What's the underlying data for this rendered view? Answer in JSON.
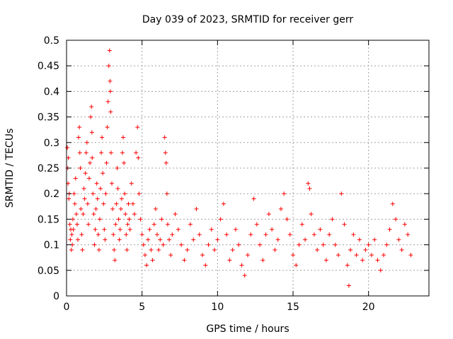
{
  "chart_data": {
    "type": "scatter",
    "title": "Day 039 of 2023, SRMTID for receiver gerr",
    "xlabel": "GPS time / hours",
    "ylabel": "SRMTID / TECUs",
    "xlim": [
      0,
      24
    ],
    "ylim": [
      0,
      0.5
    ],
    "xticks": [
      0,
      5,
      10,
      15,
      20
    ],
    "xtick_labels": [
      "0",
      "5",
      "10",
      "15",
      "20"
    ],
    "yticks": [
      0,
      0.05,
      0.1,
      0.15,
      0.2,
      0.25,
      0.3,
      0.35,
      0.4,
      0.45,
      0.5
    ],
    "ytick_labels": [
      "0",
      "0.05",
      "0.1",
      "0.15",
      "0.2",
      "0.25",
      "0.3",
      "0.35",
      "0.4",
      "0.45",
      "0.5"
    ],
    "grid": true,
    "marker": "+",
    "color": "#ff0000",
    "series": [
      {
        "points": [
          [
            0.05,
            0.29
          ],
          [
            0.08,
            0.25
          ],
          [
            0.1,
            0.22
          ],
          [
            0.12,
            0.27
          ],
          [
            0.15,
            0.19
          ],
          [
            0.18,
            0.2
          ],
          [
            0.22,
            0.14
          ],
          [
            0.25,
            0.11
          ],
          [
            0.28,
            0.13
          ],
          [
            0.32,
            0.09
          ],
          [
            0.35,
            0.12
          ],
          [
            0.38,
            0.1
          ],
          [
            0.42,
            0.15
          ],
          [
            0.45,
            0.13
          ],
          [
            0.5,
            0.2
          ],
          [
            0.55,
            0.18
          ],
          [
            0.6,
            0.23
          ],
          [
            0.65,
            0.16
          ],
          [
            0.7,
            0.14
          ],
          [
            0.75,
            0.11
          ],
          [
            0.8,
            0.31
          ],
          [
            0.85,
            0.33
          ],
          [
            0.88,
            0.28
          ],
          [
            0.92,
            0.25
          ],
          [
            0.95,
            0.17
          ],
          [
            1.0,
            0.12
          ],
          [
            1.05,
            0.09
          ],
          [
            1.1,
            0.16
          ],
          [
            1.15,
            0.21
          ],
          [
            1.2,
            0.19
          ],
          [
            1.25,
            0.24
          ],
          [
            1.3,
            0.28
          ],
          [
            1.35,
            0.3
          ],
          [
            1.4,
            0.18
          ],
          [
            1.45,
            0.14
          ],
          [
            1.5,
            0.23
          ],
          [
            1.55,
            0.26
          ],
          [
            1.6,
            0.35
          ],
          [
            1.65,
            0.37
          ],
          [
            1.68,
            0.32
          ],
          [
            1.7,
            0.27
          ],
          [
            1.75,
            0.2
          ],
          [
            1.8,
            0.16
          ],
          [
            1.85,
            0.1
          ],
          [
            1.9,
            0.13
          ],
          [
            1.95,
            0.17
          ],
          [
            2.0,
            0.22
          ],
          [
            2.05,
            0.19
          ],
          [
            2.1,
            0.12
          ],
          [
            2.15,
            0.09
          ],
          [
            2.2,
            0.15
          ],
          [
            2.25,
            0.21
          ],
          [
            2.3,
            0.28
          ],
          [
            2.35,
            0.31
          ],
          [
            2.4,
            0.24
          ],
          [
            2.45,
            0.18
          ],
          [
            2.5,
            0.13
          ],
          [
            2.55,
            0.11
          ],
          [
            2.6,
            0.2
          ],
          [
            2.65,
            0.26
          ],
          [
            2.7,
            0.33
          ],
          [
            2.75,
            0.38
          ],
          [
            2.8,
            0.45
          ],
          [
            2.85,
            0.48
          ],
          [
            2.88,
            0.42
          ],
          [
            2.9,
            0.4
          ],
          [
            2.92,
            0.36
          ],
          [
            2.95,
            0.28
          ],
          [
            3.0,
            0.22
          ],
          [
            3.05,
            0.17
          ],
          [
            3.1,
            0.12
          ],
          [
            3.15,
            0.09
          ],
          [
            3.2,
            0.07
          ],
          [
            3.25,
            0.14
          ],
          [
            3.3,
            0.18
          ],
          [
            3.35,
            0.25
          ],
          [
            3.4,
            0.21
          ],
          [
            3.45,
            0.15
          ],
          [
            3.5,
            0.11
          ],
          [
            3.55,
            0.13
          ],
          [
            3.6,
            0.17
          ],
          [
            3.65,
            0.19
          ],
          [
            3.7,
            0.28
          ],
          [
            3.75,
            0.31
          ],
          [
            3.8,
            0.26
          ],
          [
            3.85,
            0.2
          ],
          [
            3.9,
            0.16
          ],
          [
            3.95,
            0.12
          ],
          [
            4.0,
            0.09
          ],
          [
            4.05,
            0.14
          ],
          [
            4.1,
            0.18
          ],
          [
            4.15,
            0.15
          ],
          [
            4.2,
            0.13
          ],
          [
            4.3,
            0.22
          ],
          [
            4.4,
            0.18
          ],
          [
            4.5,
            0.16
          ],
          [
            4.6,
            0.28
          ],
          [
            4.7,
            0.33
          ],
          [
            4.75,
            0.27
          ],
          [
            4.8,
            0.2
          ],
          [
            4.9,
            0.15
          ],
          [
            5.0,
            0.12
          ],
          [
            5.1,
            0.1
          ],
          [
            5.2,
            0.08
          ],
          [
            5.3,
            0.06
          ],
          [
            5.4,
            0.11
          ],
          [
            5.5,
            0.13
          ],
          [
            5.6,
            0.09
          ],
          [
            5.7,
            0.07
          ],
          [
            5.8,
            0.14
          ],
          [
            5.9,
            0.17
          ],
          [
            6.0,
            0.12
          ],
          [
            6.1,
            0.09
          ],
          [
            6.2,
            0.11
          ],
          [
            6.3,
            0.15
          ],
          [
            6.4,
            0.1
          ],
          [
            6.5,
            0.31
          ],
          [
            6.55,
            0.28
          ],
          [
            6.6,
            0.26
          ],
          [
            6.65,
            0.2
          ],
          [
            6.7,
            0.14
          ],
          [
            6.8,
            0.11
          ],
          [
            6.9,
            0.08
          ],
          [
            7.0,
            0.12
          ],
          [
            7.2,
            0.16
          ],
          [
            7.4,
            0.13
          ],
          [
            7.6,
            0.1
          ],
          [
            7.8,
            0.07
          ],
          [
            8.0,
            0.09
          ],
          [
            8.2,
            0.14
          ],
          [
            8.4,
            0.11
          ],
          [
            8.6,
            0.17
          ],
          [
            8.8,
            0.12
          ],
          [
            9.0,
            0.08
          ],
          [
            9.2,
            0.06
          ],
          [
            9.4,
            0.1
          ],
          [
            9.6,
            0.13
          ],
          [
            9.8,
            0.09
          ],
          [
            10.0,
            0.11
          ],
          [
            10.2,
            0.15
          ],
          [
            10.4,
            0.18
          ],
          [
            10.6,
            0.12
          ],
          [
            10.8,
            0.07
          ],
          [
            11.0,
            0.09
          ],
          [
            11.2,
            0.13
          ],
          [
            11.4,
            0.1
          ],
          [
            11.6,
            0.06
          ],
          [
            11.8,
            0.04
          ],
          [
            12.0,
            0.08
          ],
          [
            12.2,
            0.12
          ],
          [
            12.4,
            0.19
          ],
          [
            12.6,
            0.14
          ],
          [
            12.8,
            0.1
          ],
          [
            13.0,
            0.07
          ],
          [
            13.2,
            0.12
          ],
          [
            13.4,
            0.16
          ],
          [
            13.6,
            0.13
          ],
          [
            13.8,
            0.09
          ],
          [
            14.0,
            0.11
          ],
          [
            14.2,
            0.17
          ],
          [
            14.4,
            0.2
          ],
          [
            14.6,
            0.15
          ],
          [
            14.8,
            0.12
          ],
          [
            15.0,
            0.08
          ],
          [
            15.2,
            0.06
          ],
          [
            15.4,
            0.1
          ],
          [
            15.6,
            0.14
          ],
          [
            15.8,
            0.11
          ],
          [
            16.0,
            0.22
          ],
          [
            16.1,
            0.21
          ],
          [
            16.2,
            0.16
          ],
          [
            16.4,
            0.12
          ],
          [
            16.6,
            0.09
          ],
          [
            16.8,
            0.13
          ],
          [
            17.0,
            0.1
          ],
          [
            17.2,
            0.07
          ],
          [
            17.4,
            0.12
          ],
          [
            17.6,
            0.15
          ],
          [
            17.8,
            0.1
          ],
          [
            18.0,
            0.08
          ],
          [
            18.2,
            0.2
          ],
          [
            18.4,
            0.14
          ],
          [
            18.6,
            0.06
          ],
          [
            18.7,
            0.02
          ],
          [
            18.8,
            0.09
          ],
          [
            19.0,
            0.12
          ],
          [
            19.2,
            0.08
          ],
          [
            19.4,
            0.11
          ],
          [
            19.6,
            0.07
          ],
          [
            19.8,
            0.09
          ],
          [
            20.0,
            0.1
          ],
          [
            20.2,
            0.08
          ],
          [
            20.4,
            0.11
          ],
          [
            20.6,
            0.07
          ],
          [
            20.8,
            0.05
          ],
          [
            21.0,
            0.08
          ],
          [
            21.2,
            0.1
          ],
          [
            21.4,
            0.13
          ],
          [
            21.6,
            0.18
          ],
          [
            21.8,
            0.15
          ],
          [
            22.0,
            0.11
          ],
          [
            22.2,
            0.09
          ],
          [
            22.4,
            0.14
          ],
          [
            22.6,
            0.12
          ],
          [
            22.8,
            0.08
          ]
        ]
      }
    ]
  }
}
